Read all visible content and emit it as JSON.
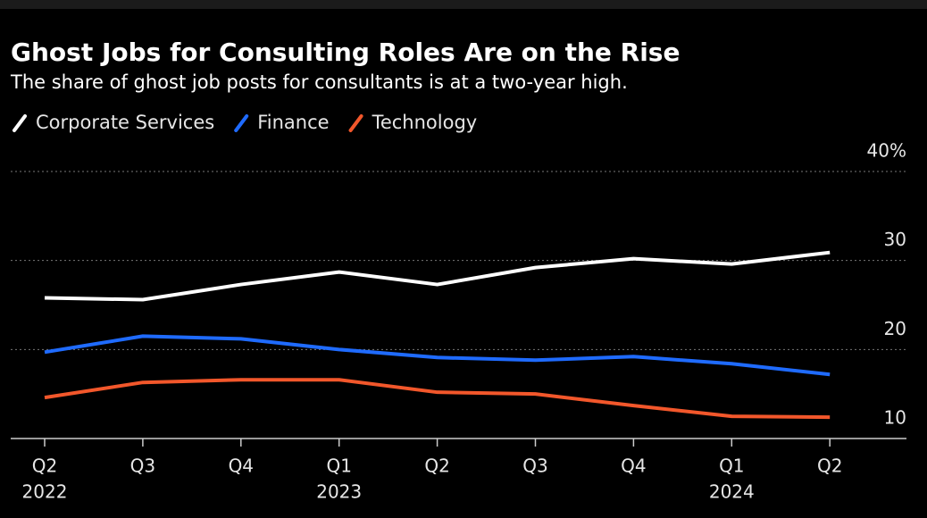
{
  "chart_data": {
    "type": "line",
    "title": "Ghost Jobs for Consulting Roles Are on the Rise",
    "subtitle": "The share of ghost job posts for consultants is at a two-year high.",
    "categories": [
      "Q2",
      "Q3",
      "Q4",
      "Q1",
      "Q2",
      "Q3",
      "Q4",
      "Q1",
      "Q2"
    ],
    "category_years": [
      "2022",
      null,
      null,
      "2023",
      null,
      null,
      null,
      "2024",
      null
    ],
    "series": [
      {
        "name": "Corporate Services",
        "color": "#ffffff",
        "values": [
          25.8,
          25.6,
          27.3,
          28.7,
          27.3,
          29.2,
          30.2,
          29.6,
          30.9
        ]
      },
      {
        "name": "Finance",
        "color": "#1f6bff",
        "values": [
          19.7,
          21.5,
          21.2,
          20.0,
          19.1,
          18.8,
          19.2,
          18.4,
          17.2
        ]
      },
      {
        "name": "Technology",
        "color": "#f2572b",
        "values": [
          14.6,
          16.3,
          16.6,
          16.6,
          15.2,
          15.0,
          13.7,
          12.5,
          12.4
        ]
      }
    ],
    "ylim": [
      10,
      40
    ],
    "yticks": [
      10,
      20,
      30,
      {
        "value": 40,
        "label": "40%"
      }
    ],
    "grid": true
  }
}
